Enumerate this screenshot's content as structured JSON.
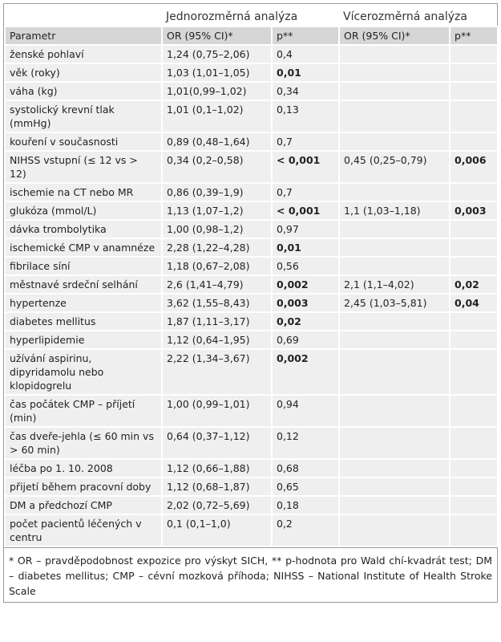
{
  "header": {
    "group_uni": "Jednorozměrná analýza",
    "group_multi": "Vícerozměrná analýza",
    "columns": [
      "Parametr",
      "OR (95% CI)*",
      "p**",
      "OR (95% CI)*",
      "p**"
    ]
  },
  "table": {
    "rows": [
      {
        "param": "ženské pohlaví",
        "uni_or": "1,24 (0,75–2,06)",
        "uni_p": "0,4",
        "uni_p_bold": false,
        "multi_or": null,
        "multi_p": null,
        "multi_p_bold": false
      },
      {
        "param": "věk (roky)",
        "uni_or": "1,03 (1,01–1,05)",
        "uni_p": "0,01",
        "uni_p_bold": true,
        "multi_or": null,
        "multi_p": null,
        "multi_p_bold": false
      },
      {
        "param": "váha (kg)",
        "uni_or": "1,01(0,99–1,02)",
        "uni_p": "0,34",
        "uni_p_bold": false,
        "multi_or": null,
        "multi_p": null,
        "multi_p_bold": false
      },
      {
        "param": "systolický krevní tlak (mmHg)",
        "uni_or": "1,01 (0,1–1,02)",
        "uni_p": "0,13",
        "uni_p_bold": false,
        "multi_or": null,
        "multi_p": null,
        "multi_p_bold": false
      },
      {
        "param": "kouření v současnosti",
        "uni_or": "0,89 (0,48–1,64)",
        "uni_p": "0,7",
        "uni_p_bold": false,
        "multi_or": null,
        "multi_p": null,
        "multi_p_bold": false
      },
      {
        "param": "NIHSS vstupní (≤ 12 vs > 12)",
        "uni_or": "0,34 (0,2–0,58)",
        "uni_p": "< 0,001",
        "uni_p_bold": true,
        "multi_or": "0,45 (0,25–0,79)",
        "multi_p": "0,006",
        "multi_p_bold": true
      },
      {
        "param": "ischemie na CT nebo MR",
        "uni_or": "0,86 (0,39–1,9)",
        "uni_p": "0,7",
        "uni_p_bold": false,
        "multi_or": null,
        "multi_p": null,
        "multi_p_bold": false
      },
      {
        "param": "glukóza (mmol/L)",
        "uni_or": "1,13 (1,07–1,2)",
        "uni_p": "< 0,001",
        "uni_p_bold": true,
        "multi_or": "1,1 (1,03–1,18)",
        "multi_p": "0,003",
        "multi_p_bold": true
      },
      {
        "param": "dávka trombolytika",
        "uni_or": "1,00 (0,98–1,2)",
        "uni_p": "0,97",
        "uni_p_bold": false,
        "multi_or": null,
        "multi_p": null,
        "multi_p_bold": false
      },
      {
        "param": "ischemické CMP v anamnéze",
        "uni_or": "2,28 (1,22–4,28)",
        "uni_p": "0,01",
        "uni_p_bold": true,
        "multi_or": null,
        "multi_p": null,
        "multi_p_bold": false
      },
      {
        "param": "fibrilace síní",
        "uni_or": "1,18 (0,67–2,08)",
        "uni_p": "0,56",
        "uni_p_bold": false,
        "multi_or": null,
        "multi_p": null,
        "multi_p_bold": false
      },
      {
        "param": "městnavé srdeční selhání",
        "uni_or": "2,6 (1,41–4,79)",
        "uni_p": "0,002",
        "uni_p_bold": true,
        "multi_or": "2,1 (1,1–4,02)",
        "multi_p": "0,02",
        "multi_p_bold": true
      },
      {
        "param": "hypertenze",
        "uni_or": "3,62 (1,55–8,43)",
        "uni_p": "0,003",
        "uni_p_bold": true,
        "multi_or": "2,45 (1,03–5,81)",
        "multi_p": "0,04",
        "multi_p_bold": true
      },
      {
        "param": "diabetes mellitus",
        "uni_or": "1,87 (1,11–3,17)",
        "uni_p": "0,02",
        "uni_p_bold": true,
        "multi_or": null,
        "multi_p": null,
        "multi_p_bold": false
      },
      {
        "param": "hyperlipidemie",
        "uni_or": "1,12 (0,64–1,95)",
        "uni_p": "0,69",
        "uni_p_bold": false,
        "multi_or": null,
        "multi_p": null,
        "multi_p_bold": false
      },
      {
        "param": "užívání aspirinu, dipyridamolu nebo klopidogrelu",
        "uni_or": "2,22 (1,34–3,67)",
        "uni_p": "0,002",
        "uni_p_bold": true,
        "multi_or": null,
        "multi_p": null,
        "multi_p_bold": false
      },
      {
        "param": "čas počátek CMP – příjetí (min)",
        "uni_or": "1,00 (0,99–1,01)",
        "uni_p": "0,94",
        "uni_p_bold": false,
        "multi_or": null,
        "multi_p": null,
        "multi_p_bold": false
      },
      {
        "param": "čas dveře-jehla (≤ 60 min vs > 60 min)",
        "uni_or": "0,64 (0,37–1,12)",
        "uni_p": "0,12",
        "uni_p_bold": false,
        "multi_or": null,
        "multi_p": null,
        "multi_p_bold": false
      },
      {
        "param": "léčba po 1. 10. 2008",
        "uni_or": "1,12 (0,66–1,88)",
        "uni_p": "0,68",
        "uni_p_bold": false,
        "multi_or": null,
        "multi_p": null,
        "multi_p_bold": false
      },
      {
        "param": "přijetí během pracovní doby",
        "uni_or": "1,12 (0,68–1,87)",
        "uni_p": "0,65",
        "uni_p_bold": false,
        "multi_or": null,
        "multi_p": null,
        "multi_p_bold": false
      },
      {
        "param": "DM a předchozí CMP",
        "uni_or": "2,02 (0,72–5,69)",
        "uni_p": "0,18",
        "uni_p_bold": false,
        "multi_or": null,
        "multi_p": null,
        "multi_p_bold": false
      },
      {
        "param": "počet pacientů léčených v centru",
        "uni_or": "0,1 (0,1–1,0)",
        "uni_p": "0,2",
        "uni_p_bold": false,
        "multi_or": null,
        "multi_p": null,
        "multi_p_bold": false
      }
    ]
  },
  "footnote": "* OR – pravděpodobnost expozice pro výskyt SICH, ** p-hodnota pro Wald chí-kvadrát test; DM – diabetes mellitus; CMP – cévní mozková příhoda; NIHSS – National Institute of Health Stroke Scale"
}
